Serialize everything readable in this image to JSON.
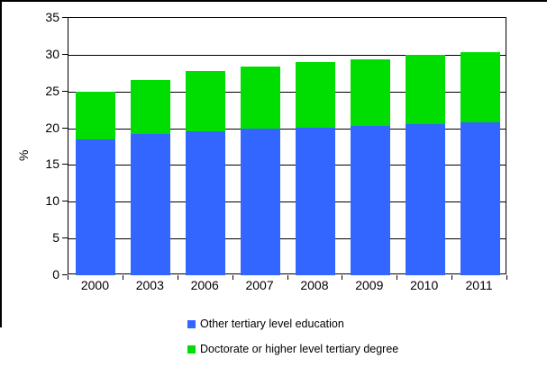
{
  "figure": {
    "background": "#ffffff",
    "frame_color": "#000000"
  },
  "chart_data": {
    "type": "bar",
    "stacked": true,
    "title": "",
    "xlabel": "",
    "ylabel": "%",
    "ylim": [
      0,
      35
    ],
    "ytick_step": 5,
    "yticks": [
      "0",
      "5",
      "10",
      "15",
      "20",
      "25",
      "30",
      "35"
    ],
    "grid": true,
    "legend_position": "bottom-left",
    "categories": [
      "2000",
      "2003",
      "2006",
      "2007",
      "2008",
      "2009",
      "2010",
      "2011"
    ],
    "series": [
      {
        "name": "Other tertiary level education",
        "color": "#3366ff",
        "values": [
          18.5,
          19.2,
          19.6,
          19.9,
          20.1,
          20.3,
          20.5,
          20.8
        ]
      },
      {
        "name": "Doctorate or higher level tertiary degree",
        "color": "#00dd00",
        "values": [
          6.5,
          7.3,
          8.2,
          8.5,
          8.9,
          9.1,
          9.5,
          9.6
        ]
      }
    ],
    "stack_totals": [
      25.0,
      26.5,
      27.8,
      28.4,
      29.0,
      29.4,
      30.0,
      30.4
    ]
  }
}
